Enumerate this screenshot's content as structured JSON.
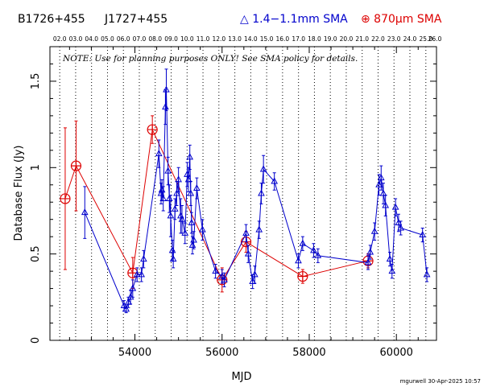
{
  "header": {
    "source1": "B1726+455",
    "source2": "J1727+455",
    "legend_mm": "△ 1.4−1.1mm SMA",
    "legend_submm": "⊕ 870µm SMA"
  },
  "note": "NOTE: Use for planning purposes ONLY! See SMA policy for details.",
  "credit": "mgurwell 30-Apr-2025 10:57",
  "colors": {
    "mm": "#0000cc",
    "submm": "#dd0000",
    "grid": "#000000"
  },
  "chart_data": {
    "type": "scatter",
    "xlabel": "MJD",
    "ylabel": "Database Flux (Jy)",
    "xlim": [
      52000,
      61000
    ],
    "ylim": [
      0,
      1.7
    ],
    "x_ticks": [
      54000,
      56000,
      58000,
      60000
    ],
    "x_tick_labels": [
      "54000",
      "56000",
      "58000",
      "60000"
    ],
    "y_ticks": [
      0,
      0.5,
      1,
      1.5
    ],
    "y_tick_labels": [
      "0",
      "0.5",
      "1",
      "1.5"
    ],
    "top_axis": {
      "labels": [
        "02.0",
        "03.0",
        "04.0",
        "05.0",
        "06.0",
        "07.0",
        "08.0",
        "09.0",
        "10.0",
        "11.0",
        "12.0",
        "13.0",
        "14.0",
        "15.0",
        "16.0",
        "17.0",
        "18.0",
        "19.0",
        "20.0",
        "21.0",
        "22.0",
        "23.0",
        "24.0",
        "25.0",
        "26.0"
      ],
      "mjd": [
        52275,
        52640,
        53005,
        53371,
        53736,
        54101,
        54466,
        54832,
        55197,
        55562,
        55927,
        56293,
        56658,
        57023,
        57388,
        57754,
        58119,
        58484,
        58849,
        59215,
        59580,
        59945,
        60310,
        60676,
        61041
      ]
    },
    "grid": "vertical dotted lines at each top-axis year",
    "series": [
      {
        "name": "1.4−1.1mm SMA",
        "marker": "triangle",
        "points": [
          [
            52850,
            0.74,
            0.15
          ],
          [
            53750,
            0.2,
            0.03
          ],
          [
            53800,
            0.18,
            0.02
          ],
          [
            53850,
            0.22,
            0.03
          ],
          [
            53900,
            0.25,
            0.04
          ],
          [
            53950,
            0.3,
            0.05
          ],
          [
            54050,
            0.38,
            0.04
          ],
          [
            54150,
            0.38,
            0.04
          ],
          [
            54200,
            0.47,
            0.05
          ],
          [
            54550,
            1.08,
            0.08
          ],
          [
            54600,
            0.85,
            0.06
          ],
          [
            54620,
            0.87,
            0.06
          ],
          [
            54650,
            0.82,
            0.07
          ],
          [
            54700,
            1.35,
            0.1
          ],
          [
            54720,
            1.45,
            0.12
          ],
          [
            54760,
            0.98,
            0.08
          ],
          [
            54790,
            0.82,
            0.08
          ],
          [
            54820,
            0.72,
            0.12
          ],
          [
            54860,
            0.52,
            0.06
          ],
          [
            54880,
            0.47,
            0.05
          ],
          [
            54920,
            0.76,
            0.06
          ],
          [
            54960,
            0.85,
            0.07
          ],
          [
            55000,
            0.93,
            0.07
          ],
          [
            55050,
            0.72,
            0.1
          ],
          [
            55080,
            0.7,
            0.08
          ],
          [
            55150,
            0.62,
            0.06
          ],
          [
            55200,
            0.96,
            0.07
          ],
          [
            55230,
            0.93,
            0.07
          ],
          [
            55260,
            1.06,
            0.07
          ],
          [
            55280,
            0.85,
            0.07
          ],
          [
            55300,
            0.68,
            0.06
          ],
          [
            55320,
            0.55,
            0.05
          ],
          [
            55350,
            0.58,
            0.05
          ],
          [
            55420,
            0.88,
            0.06
          ],
          [
            55550,
            0.64,
            0.06
          ],
          [
            55850,
            0.4,
            0.04
          ],
          [
            56000,
            0.37,
            0.04
          ],
          [
            56050,
            0.35,
            0.04
          ],
          [
            56550,
            0.62,
            0.05
          ],
          [
            56600,
            0.5,
            0.05
          ],
          [
            56700,
            0.34,
            0.04
          ],
          [
            56750,
            0.38,
            0.05
          ],
          [
            56850,
            0.64,
            0.05
          ],
          [
            56900,
            0.85,
            0.06
          ],
          [
            56950,
            0.99,
            0.08
          ],
          [
            57200,
            0.92,
            0.05
          ],
          [
            57750,
            0.46,
            0.04
          ],
          [
            57850,
            0.56,
            0.04
          ],
          [
            58100,
            0.52,
            0.04
          ],
          [
            58200,
            0.49,
            0.04
          ],
          [
            59350,
            0.45,
            0.04
          ],
          [
            59400,
            0.51,
            0.04
          ],
          [
            59500,
            0.63,
            0.05
          ],
          [
            59600,
            0.9,
            0.06
          ],
          [
            59650,
            0.94,
            0.07
          ],
          [
            59700,
            0.85,
            0.06
          ],
          [
            59750,
            0.78,
            0.06
          ],
          [
            59850,
            0.47,
            0.04
          ],
          [
            59900,
            0.4,
            0.04
          ],
          [
            59980,
            0.77,
            0.05
          ],
          [
            60050,
            0.68,
            0.05
          ],
          [
            60100,
            0.65,
            0.04
          ],
          [
            60600,
            0.61,
            0.04
          ],
          [
            60700,
            0.38,
            0.04
          ]
        ]
      },
      {
        "name": "870µm SMA",
        "marker": "circle-plus",
        "points": [
          [
            52400,
            0.82,
            0.41
          ],
          [
            52650,
            1.01,
            0.26
          ],
          [
            53950,
            0.39,
            0.09
          ],
          [
            54400,
            1.22,
            0.08
          ],
          [
            56000,
            0.35,
            0.07
          ],
          [
            56550,
            0.57,
            0.06
          ],
          [
            57850,
            0.37,
            0.04
          ],
          [
            59350,
            0.46,
            0.04
          ]
        ]
      }
    ]
  }
}
